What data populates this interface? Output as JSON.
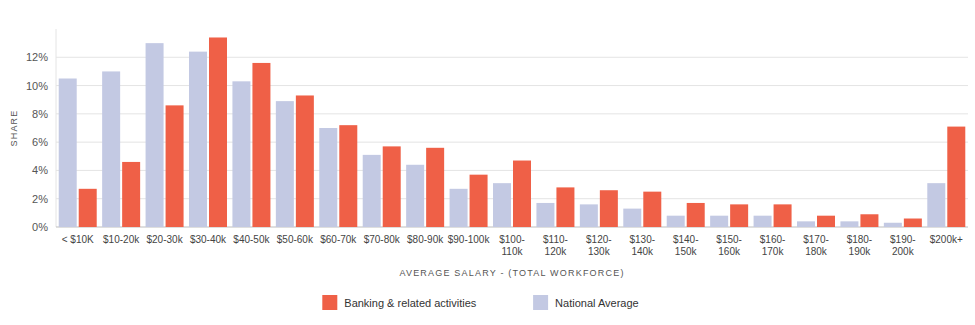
{
  "chart_data": {
    "type": "bar",
    "x_label": "AVERAGE SALARY - (TOTAL WORKFORCE)",
    "y_label": "SHARE",
    "categories": [
      "< $10K",
      "$10-20k",
      "$20-30k",
      "$30-40k",
      "$40-50k",
      "$50-60k",
      "$60-70k",
      "$70-80k",
      "$80-90k",
      "$90-100k",
      "$100-110k",
      "$110-120k",
      "$120-130k",
      "$130-140k",
      "$140-150k",
      "$150-160k",
      "$160-170k",
      "$170-180k",
      "$180-190k",
      "$190-200k",
      "$200k+"
    ],
    "series": [
      {
        "name": "Banking & related activities",
        "color": "#ef6047",
        "values": [
          2.7,
          4.6,
          8.6,
          13.4,
          11.6,
          9.3,
          7.2,
          5.7,
          5.6,
          3.7,
          4.7,
          2.8,
          2.6,
          2.5,
          1.7,
          1.6,
          1.6,
          0.8,
          0.9,
          0.6,
          7.1
        ]
      },
      {
        "name": "National Average",
        "color": "#c3c9e3",
        "values": [
          10.5,
          11.0,
          13.0,
          12.4,
          10.3,
          8.9,
          7.0,
          5.1,
          4.4,
          2.7,
          3.1,
          1.7,
          1.6,
          1.3,
          0.8,
          0.8,
          0.8,
          0.4,
          0.4,
          0.3,
          3.1
        ]
      }
    ],
    "ylim": [
      0,
      14
    ],
    "yticks": [
      {
        "value": 0,
        "label": "0%"
      },
      {
        "value": 2,
        "label": "2%"
      },
      {
        "value": 4,
        "label": "4%"
      },
      {
        "value": 6,
        "label": "6%"
      },
      {
        "value": 8,
        "label": "8%"
      },
      {
        "value": 10,
        "label": "10%"
      },
      {
        "value": 12,
        "label": "12%"
      }
    ],
    "grid": true,
    "legend": "bottom"
  }
}
